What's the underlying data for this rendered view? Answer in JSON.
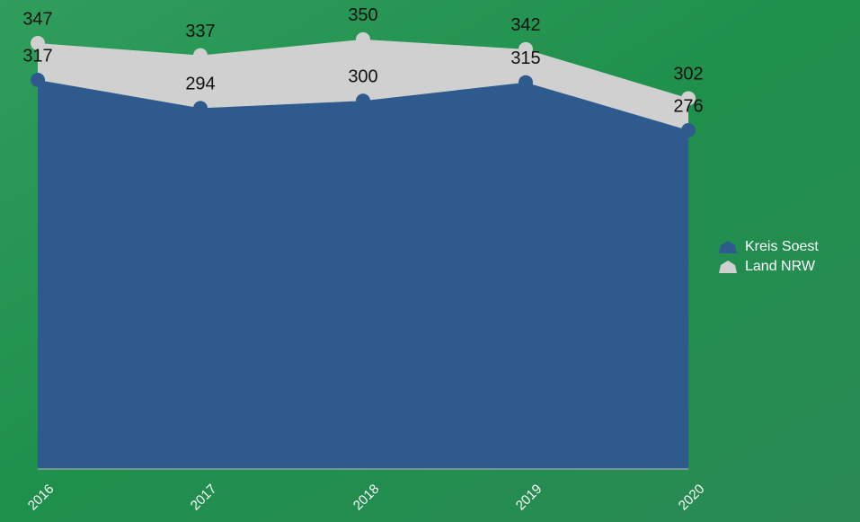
{
  "chart_data": {
    "type": "area",
    "categories": [
      "2016",
      "2017",
      "2018",
      "2019",
      "2020"
    ],
    "series": [
      {
        "name": "Land NRW",
        "color": "#d0d0d0",
        "values": [
          347,
          337,
          350,
          342,
          302
        ]
      },
      {
        "name": "Kreis Soest",
        "color": "#2e5a8e",
        "values": [
          317,
          294,
          300,
          315,
          276
        ]
      }
    ],
    "ylim": [
      0,
      400
    ],
    "legend": "right"
  }
}
